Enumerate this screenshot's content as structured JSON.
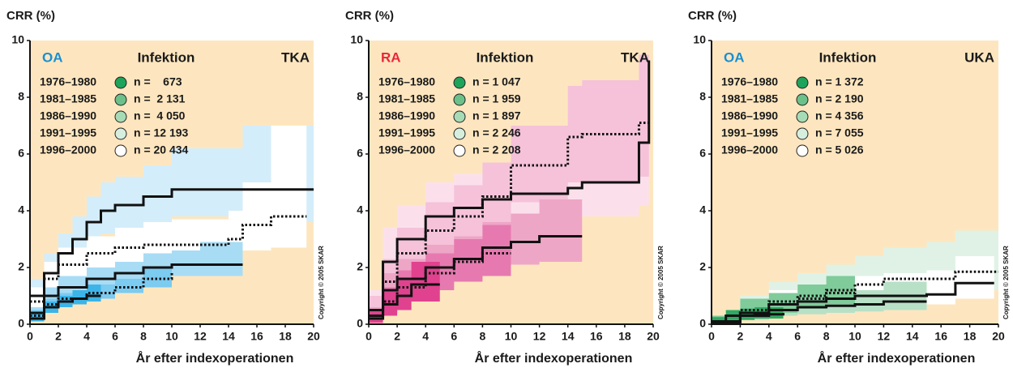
{
  "chart_data": [
    {
      "type": "step-band",
      "ylabel": "CRR (%)",
      "xlabel": "År efter indexoperationen",
      "group": "OA",
      "group_color": "#1a8fd0",
      "title": "Infektion",
      "implant": "TKA",
      "copyright": "Copyright © 2005 SKAR",
      "background": "#fde6bf",
      "xlim": [
        0,
        20
      ],
      "xticks": [
        0,
        2,
        4,
        6,
        8,
        10,
        12,
        14,
        16,
        18,
        20
      ],
      "ylim": [
        0,
        10
      ],
      "yticks": [
        0,
        2,
        4,
        6,
        8,
        10
      ],
      "series": [
        {
          "name": "1976–1980",
          "n_label": "n =    673",
          "marker_color": "#1ea35a",
          "color": "#d4edfa",
          "line_style": "solid",
          "x": [
            0,
            1,
            2,
            3,
            4,
            5,
            6,
            8,
            10,
            15,
            20
          ],
          "values": [
            1.0,
            1.8,
            2.5,
            3.0,
            3.6,
            4.0,
            4.2,
            4.5,
            4.75,
            4.75,
            4.75
          ],
          "lower": [
            0.6,
            1.3,
            1.9,
            2.4,
            2.9,
            3.2,
            3.4,
            3.6,
            3.8,
            3.6,
            3.2
          ],
          "upper": [
            1.6,
            2.5,
            3.2,
            3.8,
            4.5,
            5.0,
            5.2,
            5.6,
            6.2,
            7.0,
            10
          ]
        },
        {
          "name": "1981–1985",
          "n_label": "n =  2 131",
          "marker_color": "#6cc08a",
          "color": "#ffffff",
          "line_style": "dotted",
          "x": [
            0,
            1,
            2,
            4,
            6,
            8,
            10,
            14,
            15,
            17,
            19.5
          ],
          "values": [
            0.8,
            1.6,
            2.1,
            2.5,
            2.7,
            2.8,
            2.8,
            3.0,
            3.5,
            3.8,
            3.8
          ],
          "lower": [
            0.5,
            1.2,
            1.6,
            2.0,
            2.1,
            2.2,
            2.2,
            2.3,
            2.6,
            2.7,
            2.6
          ],
          "upper": [
            1.3,
            2.2,
            2.7,
            3.1,
            3.4,
            3.6,
            3.7,
            4.0,
            5.0,
            7.0,
            10
          ]
        },
        {
          "name": "1986–1990",
          "n_label": "n =  4 050",
          "marker_color": "#a6dbb6",
          "color": "#a8dcf5",
          "line_style": "solid",
          "x": [
            0,
            1,
            2,
            4,
            6,
            8,
            10,
            12,
            15
          ],
          "values": [
            0.4,
            1.0,
            1.3,
            1.6,
            1.8,
            2.0,
            2.1,
            2.1,
            2.1
          ],
          "lower": [
            0.2,
            0.7,
            1.0,
            1.3,
            1.5,
            1.6,
            1.7,
            1.7,
            1.6
          ],
          "upper": [
            0.6,
            1.3,
            1.7,
            2.0,
            2.2,
            2.5,
            2.6,
            2.9,
            4.8
          ]
        },
        {
          "name": "1991–1995",
          "n_label": "n = 12 193",
          "marker_color": "#d6eede",
          "color": "#7ccbf0",
          "line_style": "dotted",
          "x": [
            0,
            1,
            2,
            4,
            6,
            8,
            10
          ],
          "values": [
            0.3,
            0.7,
            0.9,
            1.1,
            1.3,
            1.6,
            1.8
          ],
          "lower": [
            0.1,
            0.5,
            0.7,
            0.9,
            1.1,
            1.3,
            1.3
          ],
          "upper": [
            0.5,
            0.9,
            1.1,
            1.4,
            1.6,
            2.0,
            6.0
          ]
        },
        {
          "name": "1996–2000",
          "n_label": "n = 20 434",
          "marker_color": "#ffffff",
          "color": "#3cb4e8",
          "line_style": "solid",
          "x": [
            0,
            1,
            2,
            3,
            4,
            5
          ],
          "values": [
            0.2,
            0.6,
            0.8,
            0.9,
            1.0,
            1.0
          ],
          "lower": [
            0.1,
            0.4,
            0.6,
            0.7,
            0.8,
            0.7
          ],
          "upper": [
            0.4,
            0.8,
            1.0,
            1.2,
            1.4,
            4.4
          ]
        }
      ]
    },
    {
      "type": "step-band",
      "ylabel": "CRR (%)",
      "xlabel": "År efter indexoperationen",
      "group": "RA",
      "group_color": "#e8273b",
      "title": "Infektion",
      "implant": "TKA",
      "copyright": "Copyright © 2005 SKAR",
      "background": "#fde6bf",
      "xlim": [
        0,
        20
      ],
      "xticks": [
        0,
        2,
        4,
        6,
        8,
        10,
        12,
        14,
        16,
        18,
        20
      ],
      "ylim": [
        0,
        10
      ],
      "yticks": [
        0,
        2,
        4,
        6,
        8,
        10
      ],
      "series": [
        {
          "name": "1976–1980",
          "n_label": "n = 1 047",
          "marker_color": "#1ea35a",
          "color": "#fbe0ec",
          "line_style": "solid",
          "x": [
            0,
            1,
            2,
            4,
            6,
            8,
            10,
            14,
            15,
            18,
            19,
            19.7
          ],
          "values": [
            0.5,
            2.2,
            3.0,
            3.8,
            4.1,
            4.4,
            4.6,
            4.8,
            5.0,
            5.0,
            6.4,
            9.3
          ],
          "lower": [
            0.2,
            1.4,
            2.2,
            2.8,
            3.1,
            3.3,
            3.5,
            3.7,
            3.8,
            3.8,
            4.2,
            4.2
          ],
          "upper": [
            1.2,
            3.4,
            4.2,
            5.0,
            5.3,
            5.6,
            6.0,
            6.4,
            6.6,
            7.0,
            8.5,
            10
          ]
        },
        {
          "name": "1981–1985",
          "n_label": "n = 1 959",
          "marker_color": "#6cc08a",
          "color": "#f5c2d9",
          "line_style": "dotted",
          "x": [
            0,
            1,
            2,
            4,
            6,
            8,
            10,
            14,
            15,
            19,
            19.7
          ],
          "values": [
            0.5,
            1.5,
            2.5,
            3.3,
            3.8,
            4.5,
            5.6,
            6.6,
            6.7,
            7.1,
            7.1
          ],
          "lower": [
            0.2,
            0.9,
            1.7,
            2.4,
            2.8,
            3.4,
            4.3,
            5.0,
            5.0,
            5.2,
            5.2
          ],
          "upper": [
            1.0,
            2.3,
            3.4,
            4.3,
            4.9,
            5.7,
            7.0,
            8.4,
            8.6,
            9.5,
            10
          ]
        },
        {
          "name": "1986–1990",
          "n_label": "n = 1 897",
          "marker_color": "#a6dbb6",
          "color": "#eea6c6",
          "line_style": "solid",
          "x": [
            0,
            1,
            2,
            4,
            6,
            8,
            10,
            12,
            15
          ],
          "values": [
            0.3,
            1.2,
            1.6,
            2.0,
            2.3,
            2.7,
            2.9,
            3.1,
            3.1
          ],
          "lower": [
            0.1,
            0.7,
            1.0,
            1.3,
            1.6,
            1.9,
            2.1,
            2.2,
            2.1
          ],
          "upper": [
            0.6,
            1.8,
            2.3,
            2.8,
            3.1,
            3.6,
            3.9,
            4.4,
            10
          ]
        },
        {
          "name": "1991–1995",
          "n_label": "n = 2 246",
          "marker_color": "#d6eede",
          "color": "#e67ab0",
          "line_style": "dotted",
          "x": [
            0,
            1,
            2,
            4,
            6,
            8,
            10
          ],
          "values": [
            0.2,
            0.8,
            1.3,
            1.8,
            2.2,
            2.5,
            2.5
          ],
          "lower": [
            0.05,
            0.4,
            0.8,
            1.2,
            1.5,
            1.7,
            1.5
          ],
          "upper": [
            0.5,
            1.3,
            1.9,
            2.5,
            3.0,
            3.5,
            8.0
          ]
        },
        {
          "name": "1996–2000",
          "n_label": "n = 2 208",
          "marker_color": "#ffffff",
          "color": "#e0428f",
          "line_style": "solid",
          "x": [
            0,
            1,
            2,
            3,
            5
          ],
          "values": [
            0.2,
            0.7,
            1.0,
            1.4,
            1.4
          ],
          "lower": [
            0.05,
            0.3,
            0.5,
            0.8,
            0.8
          ],
          "upper": [
            0.5,
            1.2,
            1.6,
            2.2,
            8.0
          ]
        }
      ]
    },
    {
      "type": "step-band",
      "ylabel": "CRR (%)",
      "xlabel": "År efter indexoperationen",
      "group": "OA",
      "group_color": "#1a8fd0",
      "title": "Infektion",
      "implant": "UKA",
      "copyright": "Copyright © 2005 SKAR",
      "background": "#fde6bf",
      "xlim": [
        0,
        20
      ],
      "xticks": [
        0,
        2,
        4,
        6,
        8,
        10,
        12,
        14,
        16,
        18,
        20
      ],
      "ylim": [
        0,
        10
      ],
      "yticks": [
        0,
        2,
        4,
        6,
        8,
        10
      ],
      "series": [
        {
          "name": "1976–1980",
          "n_label": "n = 1 372",
          "marker_color": "#1ea35a",
          "color": "#e0f2e6",
          "line_style": "dotted",
          "x": [
            0,
            2,
            4,
            6,
            8,
            10,
            12,
            15,
            17,
            20
          ],
          "values": [
            0.1,
            0.5,
            0.8,
            1.0,
            1.2,
            1.4,
            1.6,
            1.6,
            1.85,
            1.85
          ],
          "lower": [
            0.05,
            0.3,
            0.5,
            0.7,
            0.8,
            1.0,
            1.1,
            1.1,
            1.2,
            1.1
          ],
          "upper": [
            0.3,
            1.0,
            1.5,
            1.8,
            2.1,
            2.4,
            2.7,
            2.9,
            3.3,
            3.8
          ]
        },
        {
          "name": "1981–1985",
          "n_label": "n = 2 190",
          "marker_color": "#6cc08a",
          "color": "#ffffff",
          "line_style": "solid",
          "x": [
            0,
            2,
            4,
            6,
            8,
            10,
            12,
            15,
            17,
            19.7
          ],
          "values": [
            0.1,
            0.4,
            0.7,
            0.8,
            0.9,
            1.0,
            1.0,
            1.05,
            1.45,
            1.45
          ],
          "lower": [
            0.05,
            0.2,
            0.4,
            0.5,
            0.6,
            0.7,
            0.7,
            0.7,
            0.9,
            0.9
          ],
          "upper": [
            0.3,
            0.8,
            1.2,
            1.4,
            1.5,
            1.7,
            1.8,
            1.9,
            2.4,
            9.8
          ]
        },
        {
          "name": "1986–1990",
          "n_label": "n = 4 356",
          "marker_color": "#a6dbb6",
          "color": "#b8e0c6",
          "line_style": "solid",
          "x": [
            0,
            2,
            4,
            6,
            8,
            10,
            12,
            15
          ],
          "values": [
            0.05,
            0.3,
            0.5,
            0.6,
            0.65,
            0.7,
            0.8,
            0.8
          ],
          "lower": [
            0.02,
            0.15,
            0.3,
            0.35,
            0.4,
            0.45,
            0.5,
            0.45
          ],
          "upper": [
            0.2,
            0.6,
            0.8,
            1.0,
            1.1,
            1.2,
            1.5,
            6.2
          ]
        },
        {
          "name": "1991–1995",
          "n_label": "n = 7 055",
          "marker_color": "#d6eede",
          "color": "#7fcb9a",
          "line_style": "dotted",
          "x": [
            0,
            2,
            4,
            6,
            8,
            10
          ],
          "values": [
            0.1,
            0.5,
            0.7,
            0.9,
            1.1,
            1.3
          ],
          "lower": [
            0.03,
            0.25,
            0.4,
            0.55,
            0.7,
            0.8
          ],
          "upper": [
            0.3,
            0.9,
            1.1,
            1.4,
            1.7,
            6.2
          ]
        },
        {
          "name": "1996–2000",
          "n_label": "n = 5 026",
          "marker_color": "#ffffff",
          "color": "#2fa963",
          "line_style": "solid",
          "x": [
            0,
            1,
            2,
            3,
            5
          ],
          "values": [
            0.1,
            0.3,
            0.3,
            0.35,
            0.4
          ],
          "lower": [
            0.03,
            0.15,
            0.15,
            0.2,
            0.2
          ],
          "upper": [
            0.25,
            0.5,
            0.55,
            0.6,
            6.2
          ]
        }
      ]
    }
  ]
}
